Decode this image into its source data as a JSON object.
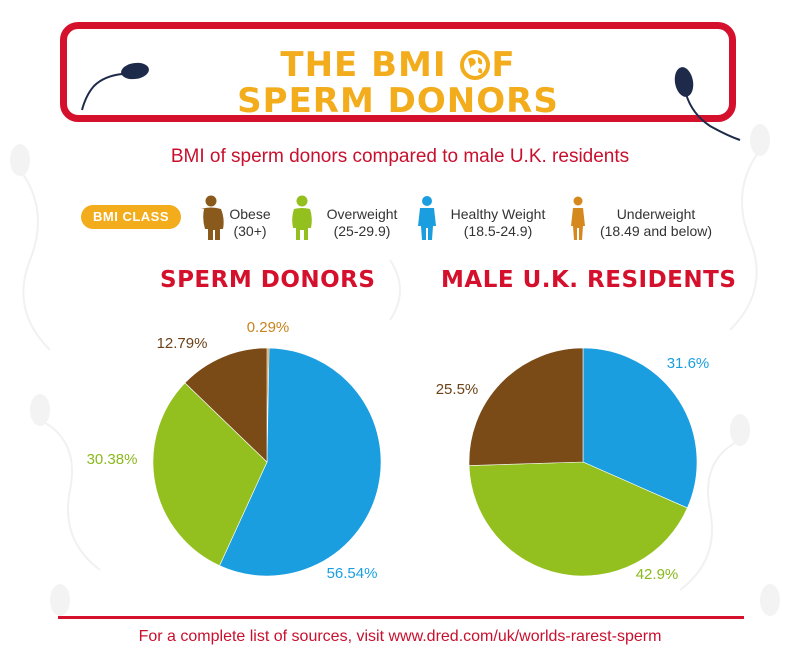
{
  "header": {
    "title_line1_left": "THE BMI ",
    "title_line1_right": "F",
    "title_line2": "SPERM DONORS"
  },
  "subtitle": "BMI of sperm donors compared to male U.K. residents",
  "legend": {
    "badge": "BMI CLASS",
    "items": [
      {
        "label": "Obese",
        "range": "(30+)",
        "color": "#8a5a1c",
        "icon": "person-obese-icon"
      },
      {
        "label": "Overweight",
        "range": "(25-29.9)",
        "color": "#93c01f",
        "icon": "person-overweight-icon"
      },
      {
        "label": "Healthy Weight",
        "range": "(18.5-24.9)",
        "color": "#1a9ee0",
        "icon": "person-healthy-icon"
      },
      {
        "label": "Underweight",
        "range": "(18.49 and below)",
        "color": "#d4881e",
        "icon": "person-underweight-icon"
      }
    ]
  },
  "chart_data": [
    {
      "type": "pie",
      "title": "SPERM DONORS",
      "slices": [
        {
          "name": "Underweight",
          "value": 0.29,
          "label": "0.29%",
          "color": "#d4881e"
        },
        {
          "name": "Healthy Weight",
          "value": 56.54,
          "label": "56.54%",
          "color": "#1a9ee0"
        },
        {
          "name": "Overweight",
          "value": 30.38,
          "label": "30.38%",
          "color": "#93c01f"
        },
        {
          "name": "Obese",
          "value": 12.79,
          "label": "12.79%",
          "color": "#7a4a17"
        }
      ]
    },
    {
      "type": "pie",
      "title": "MALE U.K. RESIDENTS",
      "slices": [
        {
          "name": "Healthy Weight",
          "value": 31.6,
          "label": "31.6%",
          "color": "#1a9ee0"
        },
        {
          "name": "Overweight",
          "value": 42.9,
          "label": "42.9%",
          "color": "#93c01f"
        },
        {
          "name": "Obese",
          "value": 25.5,
          "label": "25.5%",
          "color": "#7a4a17"
        }
      ]
    }
  ],
  "footer": "For a complete list of sources, visit www.dred.com/uk/worlds-rarest-sperm"
}
